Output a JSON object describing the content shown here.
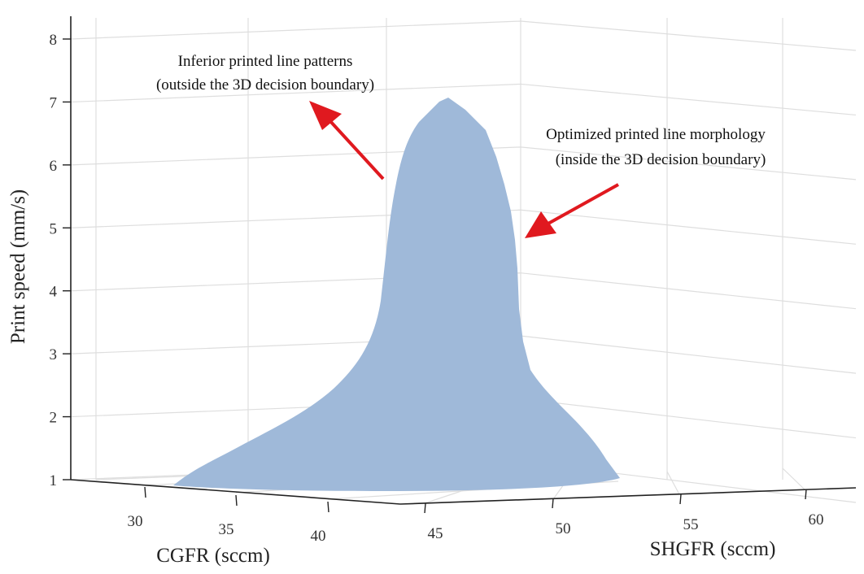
{
  "chart_data": {
    "type": "surface3d",
    "x_axis": {
      "label": "CGFR (sccm)",
      "ticks": [
        "30",
        "35",
        "40"
      ]
    },
    "y_axis": {
      "label": "SHGFR (sccm)",
      "ticks": [
        "45",
        "50",
        "55",
        "60"
      ]
    },
    "z_axis": {
      "label": "Print speed (mm/s)",
      "ticks": [
        "1",
        "2",
        "3",
        "4",
        "5",
        "6",
        "7",
        "8"
      ],
      "range": [
        1,
        8
      ]
    },
    "grid": true,
    "surface_color": "#9fb9d9",
    "boundary_profile": {
      "description": "silhouette of the 3D decision boundary volume",
      "peak_print_speed": 7.05,
      "base_print_speed": 1
    },
    "annotations": [
      {
        "lines": [
          "Inferior printed line patterns",
          "(outside the 3D decision boundary)"
        ],
        "arrow_color": "#e0191f"
      },
      {
        "lines": [
          "Optimized printed line morphology",
          "(inside the 3D decision boundary)"
        ],
        "arrow_color": "#e0191f"
      }
    ]
  }
}
